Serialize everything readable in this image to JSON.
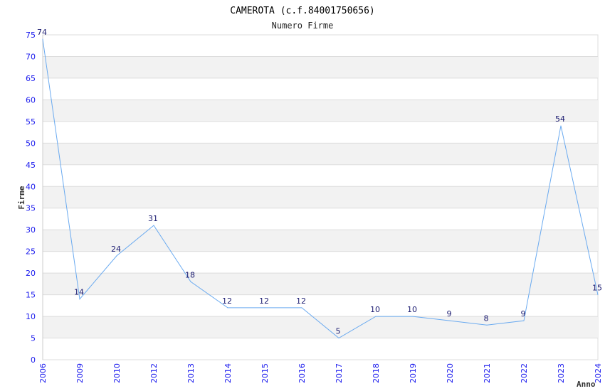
{
  "chart_data": {
    "type": "line",
    "title": "CAMEROTA (c.f.84001750656)",
    "subtitle": "Numero Firme",
    "xlabel": "Anno",
    "ylabel": "Firme",
    "ylim": [
      0,
      75
    ],
    "yticks": [
      0,
      5,
      10,
      15,
      20,
      25,
      30,
      35,
      40,
      45,
      50,
      55,
      60,
      65,
      70,
      75
    ],
    "categories": [
      "2006",
      "2009",
      "2010",
      "2012",
      "2013",
      "2014",
      "2015",
      "2016",
      "2017",
      "2018",
      "2019",
      "2020",
      "2021",
      "2022",
      "2023",
      "2024"
    ],
    "values": [
      74,
      14,
      24,
      31,
      18,
      12,
      12,
      12,
      5,
      10,
      10,
      9,
      8,
      9,
      54,
      15
    ],
    "grid": true,
    "colors": {
      "line": "#6aaaf0",
      "band": "#f2f2f2",
      "grid": "#dcdcdc",
      "tick": "#1a1aee",
      "label": "#1a1a70"
    }
  }
}
